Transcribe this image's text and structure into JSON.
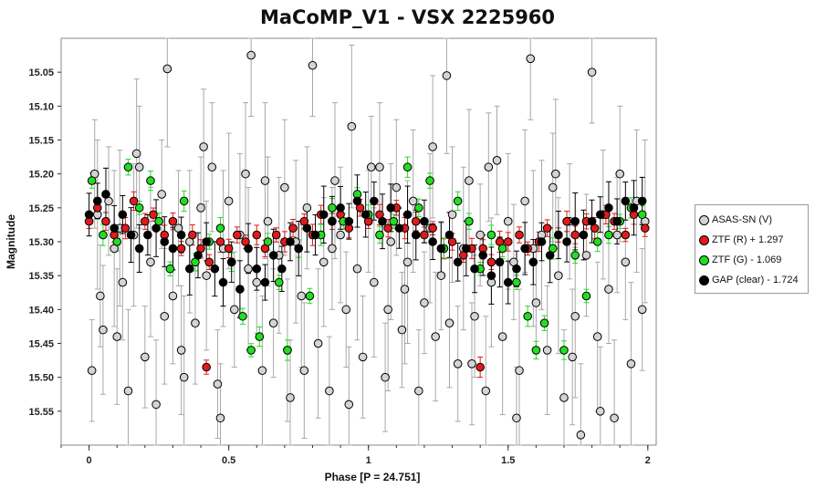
{
  "chart_data": {
    "type": "scatter",
    "title": "MaCoMP_V1 - VSX 2225960",
    "xlabel": "Phase [P = 24.751]",
    "ylabel": "Magnitude",
    "xlim": [
      -0.1,
      2.03
    ],
    "ylim": [
      15.6,
      15.0
    ],
    "y_inverted": true,
    "xticks": [
      "0",
      "0.5",
      "1",
      "1.5",
      "2"
    ],
    "yticks": [
      "15.05",
      "15.10",
      "15.15",
      "15.20",
      "15.25",
      "15.30",
      "15.35",
      "15.40",
      "15.45",
      "15.50",
      "15.55"
    ],
    "grid": false,
    "legend_position": "right",
    "series": [
      {
        "name": "ASAS-SN (V)",
        "color": "#d4d4d4",
        "errorbar_color": "#a8a8a8",
        "points": [
          [
            0.01,
            15.49
          ],
          [
            0.03,
            15.26
          ],
          [
            0.05,
            15.43
          ],
          [
            0.07,
            15.24
          ],
          [
            0.09,
            15.31
          ],
          [
            0.1,
            15.44
          ],
          [
            0.12,
            15.36
          ],
          [
            0.14,
            15.52
          ],
          [
            0.16,
            15.29
          ],
          [
            0.18,
            15.19
          ],
          [
            0.2,
            15.47
          ],
          [
            0.22,
            15.33
          ],
          [
            0.24,
            15.54
          ],
          [
            0.26,
            15.23
          ],
          [
            0.28,
            15.045
          ],
          [
            0.3,
            15.38
          ],
          [
            0.32,
            15.28
          ],
          [
            0.34,
            15.5
          ],
          [
            0.36,
            15.3
          ],
          [
            0.38,
            15.42
          ],
          [
            0.4,
            15.25
          ],
          [
            0.42,
            15.35
          ],
          [
            0.44,
            15.19
          ],
          [
            0.46,
            15.51
          ],
          [
            0.48,
            15.31
          ],
          [
            0.5,
            15.24
          ],
          [
            0.52,
            15.4
          ],
          [
            0.54,
            15.29
          ],
          [
            0.56,
            15.2
          ],
          [
            0.58,
            15.025
          ],
          [
            0.6,
            15.36
          ],
          [
            0.62,
            15.49
          ],
          [
            0.64,
            15.27
          ],
          [
            0.66,
            15.42
          ],
          [
            0.68,
            15.32
          ],
          [
            0.7,
            15.22
          ],
          [
            0.72,
            15.53
          ],
          [
            0.74,
            15.3
          ],
          [
            0.76,
            15.38
          ],
          [
            0.78,
            15.25
          ],
          [
            0.8,
            15.04
          ],
          [
            0.82,
            15.45
          ],
          [
            0.84,
            15.33
          ],
          [
            0.86,
            15.52
          ],
          [
            0.88,
            15.21
          ],
          [
            0.9,
            15.29
          ],
          [
            0.92,
            15.4
          ],
          [
            0.94,
            15.13
          ],
          [
            0.96,
            15.34
          ],
          [
            0.98,
            15.47
          ],
          [
            1.0,
            15.27
          ],
          [
            1.02,
            15.36
          ],
          [
            1.04,
            15.19
          ],
          [
            1.06,
            15.5
          ],
          [
            1.08,
            15.3
          ],
          [
            1.1,
            15.22
          ],
          [
            1.12,
            15.43
          ],
          [
            1.14,
            15.33
          ],
          [
            1.16,
            15.24
          ],
          [
            1.18,
            15.52
          ],
          [
            1.2,
            15.39
          ],
          [
            1.22,
            15.28
          ],
          [
            1.24,
            15.44
          ],
          [
            1.26,
            15.35
          ],
          [
            1.28,
            15.055
          ],
          [
            1.3,
            15.26
          ],
          [
            1.32,
            15.48
          ],
          [
            1.34,
            15.31
          ],
          [
            1.36,
            15.21
          ],
          [
            1.38,
            15.41
          ],
          [
            1.4,
            15.29
          ],
          [
            1.42,
            15.52
          ],
          [
            1.44,
            15.36
          ],
          [
            1.46,
            15.18
          ],
          [
            1.48,
            15.44
          ],
          [
            1.5,
            15.27
          ],
          [
            1.52,
            15.33
          ],
          [
            1.54,
            15.49
          ],
          [
            1.56,
            15.24
          ],
          [
            1.58,
            15.03
          ],
          [
            1.6,
            15.39
          ],
          [
            1.62,
            15.29
          ],
          [
            1.64,
            15.46
          ],
          [
            1.66,
            15.22
          ],
          [
            1.68,
            15.35
          ],
          [
            1.7,
            15.53
          ],
          [
            1.72,
            15.27
          ],
          [
            1.74,
            15.41
          ],
          [
            1.76,
            15.585
          ],
          [
            1.78,
            15.32
          ],
          [
            1.8,
            15.05
          ],
          [
            1.82,
            15.44
          ],
          [
            1.84,
            15.26
          ],
          [
            1.86,
            15.37
          ],
          [
            1.88,
            15.56
          ],
          [
            1.9,
            15.2
          ],
          [
            1.92,
            15.33
          ],
          [
            1.94,
            15.48
          ],
          [
            1.96,
            15.24
          ],
          [
            1.98,
            15.4
          ],
          [
            0.04,
            15.38
          ],
          [
            0.17,
            15.17
          ],
          [
            0.33,
            15.46
          ],
          [
            0.47,
            15.56
          ],
          [
            0.63,
            15.21
          ],
          [
            0.77,
            15.49
          ],
          [
            0.93,
            15.54
          ],
          [
            1.07,
            15.4
          ],
          [
            1.23,
            15.16
          ],
          [
            1.37,
            15.48
          ],
          [
            1.53,
            15.56
          ],
          [
            1.67,
            15.2
          ],
          [
            1.83,
            15.55
          ],
          [
            0.02,
            15.2
          ],
          [
            0.11,
            15.28
          ],
          [
            0.27,
            15.41
          ],
          [
            0.41,
            15.16
          ],
          [
            0.57,
            15.34
          ],
          [
            0.71,
            15.46
          ],
          [
            0.87,
            15.31
          ],
          [
            1.01,
            15.19
          ],
          [
            1.13,
            15.37
          ],
          [
            1.29,
            15.42
          ],
          [
            1.43,
            15.19
          ],
          [
            1.59,
            15.31
          ],
          [
            1.73,
            15.47
          ],
          [
            1.89,
            15.29
          ],
          [
            1.99,
            15.27
          ]
        ]
      },
      {
        "name": "ZTF (R) + 1.297",
        "color": "#e21a1a",
        "errorbar_color": "#e21a1a",
        "points": [
          [
            0.0,
            15.27
          ],
          [
            0.03,
            15.25
          ],
          [
            0.06,
            15.27
          ],
          [
            0.09,
            15.29
          ],
          [
            0.13,
            15.28
          ],
          [
            0.16,
            15.24
          ],
          [
            0.2,
            15.27
          ],
          [
            0.23,
            15.26
          ],
          [
            0.27,
            15.29
          ],
          [
            0.3,
            15.27
          ],
          [
            0.33,
            15.31
          ],
          [
            0.37,
            15.29
          ],
          [
            0.4,
            15.31
          ],
          [
            0.43,
            15.33
          ],
          [
            0.47,
            15.3
          ],
          [
            0.5,
            15.31
          ],
          [
            0.53,
            15.29
          ],
          [
            0.56,
            15.3
          ],
          [
            0.6,
            15.29
          ],
          [
            0.63,
            15.31
          ],
          [
            0.67,
            15.29
          ],
          [
            0.7,
            15.3
          ],
          [
            0.73,
            15.28
          ],
          [
            0.77,
            15.27
          ],
          [
            0.8,
            15.29
          ],
          [
            0.83,
            15.26
          ],
          [
            0.87,
            15.27
          ],
          [
            0.9,
            15.26
          ],
          [
            0.93,
            15.28
          ],
          [
            0.97,
            15.25
          ],
          [
            1.0,
            15.27
          ],
          [
            1.04,
            15.26
          ],
          [
            1.07,
            15.28
          ],
          [
            1.1,
            15.25
          ],
          [
            1.13,
            15.28
          ],
          [
            1.17,
            15.27
          ],
          [
            1.2,
            15.29
          ],
          [
            1.23,
            15.28
          ],
          [
            1.27,
            15.31
          ],
          [
            1.3,
            15.3
          ],
          [
            1.34,
            15.32
          ],
          [
            1.37,
            15.31
          ],
          [
            1.41,
            15.31
          ],
          [
            1.44,
            15.33
          ],
          [
            1.47,
            15.3
          ],
          [
            1.5,
            15.3
          ],
          [
            1.54,
            15.29
          ],
          [
            1.57,
            15.31
          ],
          [
            1.61,
            15.3
          ],
          [
            1.64,
            15.28
          ],
          [
            1.68,
            15.29
          ],
          [
            1.71,
            15.27
          ],
          [
            1.74,
            15.29
          ],
          [
            1.78,
            15.27
          ],
          [
            1.81,
            15.28
          ],
          [
            1.85,
            15.26
          ],
          [
            1.88,
            15.27
          ],
          [
            1.92,
            15.29
          ],
          [
            1.95,
            15.26
          ],
          [
            1.99,
            15.28
          ],
          [
            0.42,
            15.485
          ],
          [
            1.4,
            15.485
          ]
        ]
      },
      {
        "name": "ZTF (G) - 1.069",
        "color": "#22dd22",
        "errorbar_color": "#22dd22",
        "points": [
          [
            0.01,
            15.21
          ],
          [
            0.05,
            15.29
          ],
          [
            0.1,
            15.3
          ],
          [
            0.14,
            15.19
          ],
          [
            0.18,
            15.25
          ],
          [
            0.22,
            15.21
          ],
          [
            0.25,
            15.27
          ],
          [
            0.29,
            15.34
          ],
          [
            0.34,
            15.24
          ],
          [
            0.38,
            15.33
          ],
          [
            0.43,
            15.3
          ],
          [
            0.47,
            15.28
          ],
          [
            0.51,
            15.33
          ],
          [
            0.55,
            15.41
          ],
          [
            0.58,
            15.46
          ],
          [
            0.61,
            15.44
          ],
          [
            0.64,
            15.3
          ],
          [
            0.68,
            15.36
          ],
          [
            0.71,
            15.46
          ],
          [
            0.75,
            15.31
          ],
          [
            0.79,
            15.38
          ],
          [
            0.83,
            15.29
          ],
          [
            0.87,
            15.25
          ],
          [
            0.91,
            15.27
          ],
          [
            0.96,
            15.23
          ],
          [
            1.0,
            15.26
          ],
          [
            1.04,
            15.29
          ],
          [
            1.09,
            15.27
          ],
          [
            1.14,
            15.19
          ],
          [
            1.18,
            15.25
          ],
          [
            1.22,
            15.21
          ],
          [
            1.27,
            15.31
          ],
          [
            1.32,
            15.24
          ],
          [
            1.36,
            15.27
          ],
          [
            1.4,
            15.34
          ],
          [
            1.44,
            15.29
          ],
          [
            1.48,
            15.31
          ],
          [
            1.53,
            15.36
          ],
          [
            1.57,
            15.41
          ],
          [
            1.6,
            15.46
          ],
          [
            1.63,
            15.42
          ],
          [
            1.66,
            15.31
          ],
          [
            1.7,
            15.46
          ],
          [
            1.74,
            15.32
          ],
          [
            1.78,
            15.38
          ],
          [
            1.82,
            15.3
          ],
          [
            1.86,
            15.29
          ],
          [
            1.9,
            15.27
          ],
          [
            1.94,
            15.25
          ],
          [
            1.98,
            15.26
          ]
        ]
      },
      {
        "name": "GAP (clear) - 1.724",
        "color": "#000000",
        "errorbar_color": "#000000",
        "points": [
          [
            0.0,
            15.26
          ],
          [
            0.03,
            15.24
          ],
          [
            0.06,
            15.23
          ],
          [
            0.09,
            15.28
          ],
          [
            0.12,
            15.26
          ],
          [
            0.15,
            15.29
          ],
          [
            0.18,
            15.31
          ],
          [
            0.21,
            15.29
          ],
          [
            0.24,
            15.28
          ],
          [
            0.27,
            15.3
          ],
          [
            0.3,
            15.31
          ],
          [
            0.33,
            15.29
          ],
          [
            0.36,
            15.34
          ],
          [
            0.39,
            15.32
          ],
          [
            0.42,
            15.3
          ],
          [
            0.45,
            15.34
          ],
          [
            0.48,
            15.36
          ],
          [
            0.51,
            15.33
          ],
          [
            0.54,
            15.37
          ],
          [
            0.57,
            15.31
          ],
          [
            0.6,
            15.34
          ],
          [
            0.63,
            15.36
          ],
          [
            0.66,
            15.32
          ],
          [
            0.69,
            15.34
          ],
          [
            0.72,
            15.3
          ],
          [
            0.75,
            15.31
          ],
          [
            0.78,
            15.28
          ],
          [
            0.81,
            15.29
          ],
          [
            0.84,
            15.26
          ],
          [
            0.87,
            15.27
          ],
          [
            0.9,
            15.25
          ],
          [
            0.93,
            15.27
          ],
          [
            0.96,
            15.24
          ],
          [
            0.99,
            15.26
          ],
          [
            1.02,
            15.24
          ],
          [
            1.05,
            15.27
          ],
          [
            1.08,
            15.25
          ],
          [
            1.11,
            15.28
          ],
          [
            1.14,
            15.26
          ],
          [
            1.17,
            15.29
          ],
          [
            1.2,
            15.27
          ],
          [
            1.23,
            15.3
          ],
          [
            1.26,
            15.31
          ],
          [
            1.29,
            15.29
          ],
          [
            1.32,
            15.33
          ],
          [
            1.35,
            15.31
          ],
          [
            1.38,
            15.34
          ],
          [
            1.41,
            15.32
          ],
          [
            1.44,
            15.35
          ],
          [
            1.47,
            15.33
          ],
          [
            1.5,
            15.36
          ],
          [
            1.53,
            15.34
          ],
          [
            1.56,
            15.31
          ],
          [
            1.59,
            15.33
          ],
          [
            1.62,
            15.3
          ],
          [
            1.65,
            15.32
          ],
          [
            1.68,
            15.29
          ],
          [
            1.71,
            15.3
          ],
          [
            1.74,
            15.27
          ],
          [
            1.77,
            15.29
          ],
          [
            1.8,
            15.27
          ],
          [
            1.83,
            15.26
          ],
          [
            1.86,
            15.25
          ],
          [
            1.89,
            15.27
          ],
          [
            1.92,
            15.24
          ],
          [
            1.95,
            15.25
          ],
          [
            1.98,
            15.24
          ]
        ]
      }
    ]
  }
}
